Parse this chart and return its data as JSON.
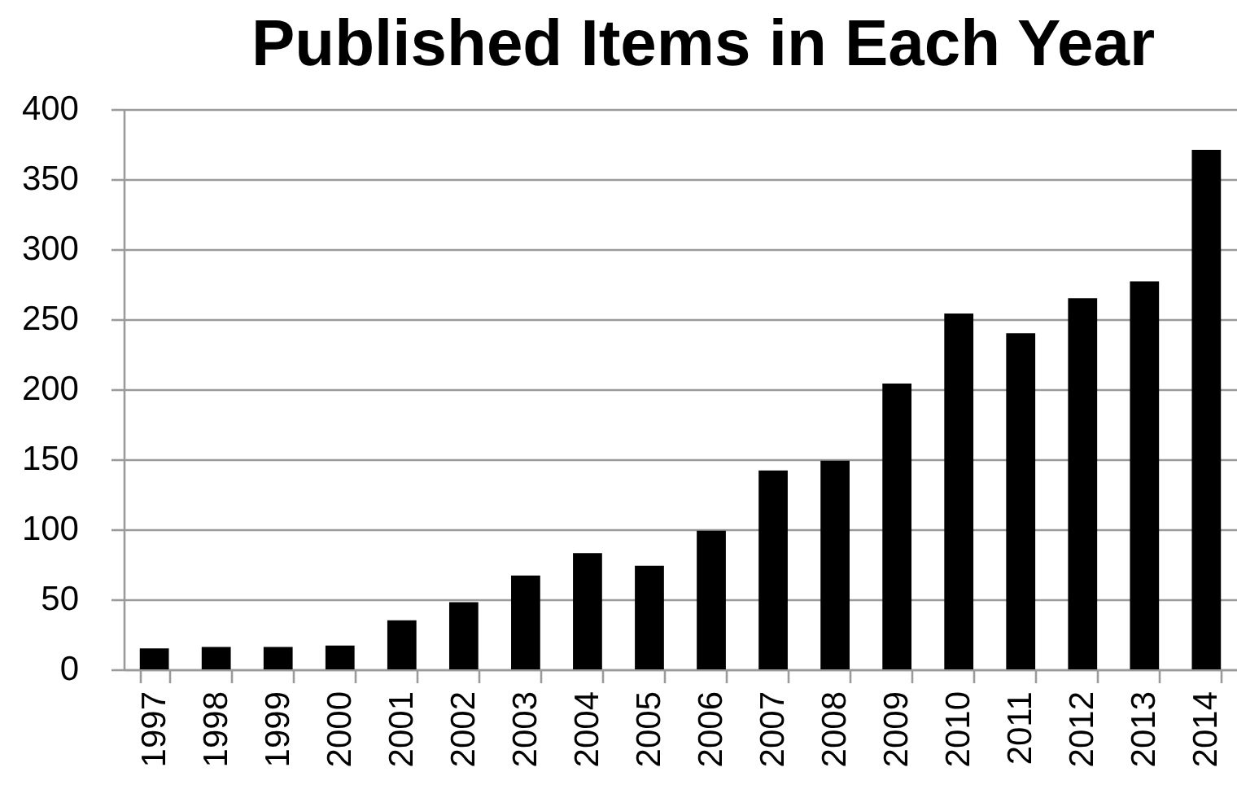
{
  "chart_data": {
    "type": "bar",
    "title": "Published Items in Each Year",
    "categories": [
      "1997",
      "1998",
      "1999",
      "2000",
      "2001",
      "2002",
      "2003",
      "2004",
      "2005",
      "2006",
      "2007",
      "2008",
      "2009",
      "2010",
      "2011",
      "2012",
      "2013",
      "2014"
    ],
    "values": [
      15,
      16,
      16,
      17,
      35,
      48,
      67,
      83,
      74,
      99,
      142,
      149,
      204,
      254,
      240,
      265,
      277,
      371
    ],
    "color": "#000000",
    "ylim": [
      0,
      400
    ],
    "yticks": [
      0,
      50,
      100,
      150,
      200,
      250,
      300,
      350,
      400
    ],
    "grid": "y"
  }
}
